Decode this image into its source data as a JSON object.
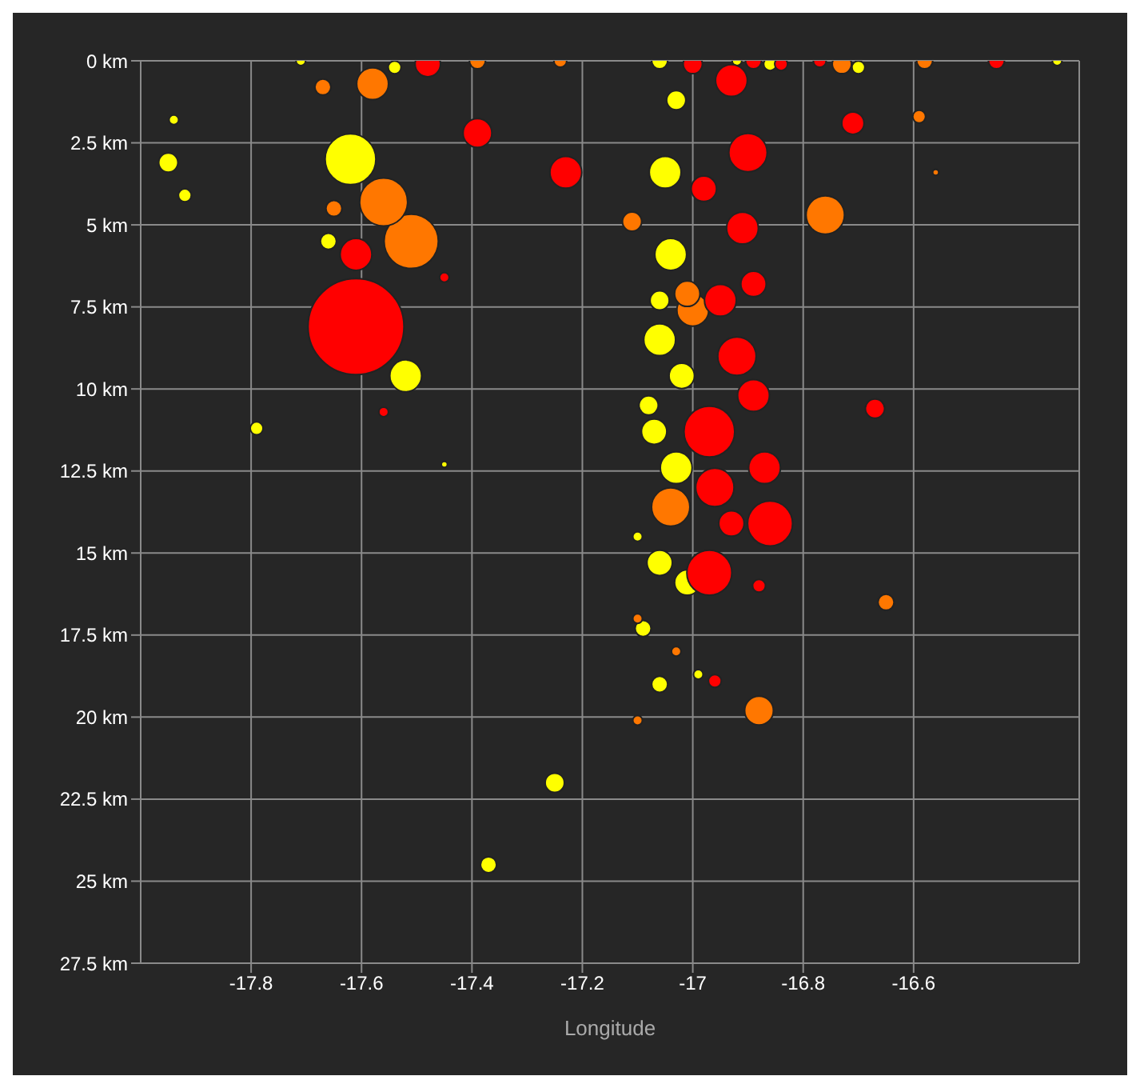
{
  "chart_data": {
    "type": "bubble",
    "xlabel": "Longitude",
    "xlim": [
      -18,
      -16.3
    ],
    "xticks": [
      -17.8,
      -17.6,
      -17.4,
      -17.2,
      -17,
      -16.8,
      -16.6
    ],
    "ylim": [
      27.5,
      0
    ],
    "yticks": [
      {
        "value": 0,
        "label": "0 km"
      },
      {
        "value": 2.5,
        "label": "2.5 km"
      },
      {
        "value": 5,
        "label": "5 km"
      },
      {
        "value": 7.5,
        "label": "7.5 km"
      },
      {
        "value": 10,
        "label": "10 km"
      },
      {
        "value": 12.5,
        "label": "12.5 km"
      },
      {
        "value": 15,
        "label": "15 km"
      },
      {
        "value": 17.5,
        "label": "17.5 km"
      },
      {
        "value": 20,
        "label": "20 km"
      },
      {
        "value": 22.5,
        "label": "22.5 km"
      },
      {
        "value": 25,
        "label": "25 km"
      },
      {
        "value": 27.5,
        "label": "27.5 km"
      }
    ],
    "grid": true,
    "legend": false,
    "series": [
      {
        "color": "#ffff00",
        "x": [
          -17.62,
          -17.95,
          -17.94,
          -17.92,
          -17.79,
          -17.66,
          -17.52,
          -17.45,
          -17.25,
          -17.37,
          -17.05,
          -17.06,
          -17.07,
          -17.03,
          -17.06,
          -17.04,
          -17.06,
          -17.09,
          -17.1,
          -17.01,
          -16.99,
          -17.02,
          -17.03,
          -17.06,
          -16.92,
          -16.34,
          -16.86,
          -16.7,
          -17.71,
          -17.54,
          -17.06,
          -17.08
        ],
        "values": [
          3,
          3.1,
          1.8,
          4.1,
          11.2,
          5.5,
          9.6,
          12.3,
          22,
          24.5,
          3.4,
          8.5,
          11.3,
          12.4,
          15.3,
          5.9,
          19,
          17.3,
          14.5,
          15.9,
          18.7,
          9.6,
          1.2,
          0,
          0,
          0,
          0.1,
          0.2,
          0,
          0.2,
          7.3,
          10.5
        ],
        "sizes": [
          0.28,
          0.04,
          0.01,
          0.018,
          0.018,
          0.028,
          0.11,
          0.004,
          0.04,
          0.028,
          0.11,
          0.11,
          0.07,
          0.11,
          0.07,
          0.11,
          0.028,
          0.028,
          0.01,
          0.07,
          0.01,
          0.07,
          0.04,
          0.028,
          0.01,
          0.01,
          0.018,
          0.018,
          0.01,
          0.018,
          0.04,
          0.04
        ]
      },
      {
        "color": "#ff7700",
        "x": [
          -17.51,
          -17.56,
          -17.58,
          -17.67,
          -17.65,
          -16.76,
          -16.88,
          -16.65,
          -17.04,
          -17,
          -17.1,
          -17.11,
          -17.39,
          -17.24,
          -16.73,
          -16.58,
          -16.59,
          -17.01,
          -17.03,
          -17.1,
          -16.56
        ],
        "values": [
          5.5,
          4.3,
          0.7,
          0.8,
          4.5,
          4.7,
          19.8,
          16.5,
          13.6,
          7.6,
          20.1,
          4.9,
          0,
          0,
          0.1,
          0,
          1.7,
          7.1,
          18,
          17,
          3.4
        ],
        "sizes": [
          0.32,
          0.25,
          0.11,
          0.028,
          0.028,
          0.16,
          0.09,
          0.028,
          0.16,
          0.11,
          0.01,
          0.04,
          0.028,
          0.018,
          0.04,
          0.028,
          0.018,
          0.07,
          0.01,
          0.01,
          0.004
        ]
      },
      {
        "color": "#ff0000",
        "x": [
          -17.61,
          -17.48,
          -17.39,
          -17.23,
          -17.61,
          -17.56,
          -17.45,
          -16.71,
          -16.67,
          -16.45,
          -16.97,
          -16.86,
          -16.97,
          -16.9,
          -16.93,
          -16.91,
          -16.95,
          -16.92,
          -16.96,
          -16.89,
          -16.89,
          -16.96,
          -16.88,
          -17,
          -16.89,
          -16.84,
          -16.98,
          -16.87,
          -16.93,
          -16.77
        ],
        "values": [
          8.1,
          0.1,
          2.2,
          3.4,
          5.9,
          10.7,
          6.6,
          1.9,
          10.6,
          0,
          11.3,
          14.1,
          15.6,
          2.8,
          0.6,
          5.1,
          7.3,
          9,
          13,
          10.2,
          6.8,
          18.9,
          16,
          0.1,
          0,
          0.1,
          3.9,
          12.4,
          14.1,
          0
        ],
        "sizes": [
          1,
          0.07,
          0.09,
          0.11,
          0.11,
          0.01,
          0.01,
          0.054,
          0.04,
          0.028,
          0.28,
          0.22,
          0.22,
          0.16,
          0.11,
          0.11,
          0.11,
          0.16,
          0.16,
          0.11,
          0.07,
          0.018,
          0.018,
          0.04,
          0.028,
          0.018,
          0.07,
          0.11,
          0.07,
          0.018
        ]
      }
    ]
  }
}
